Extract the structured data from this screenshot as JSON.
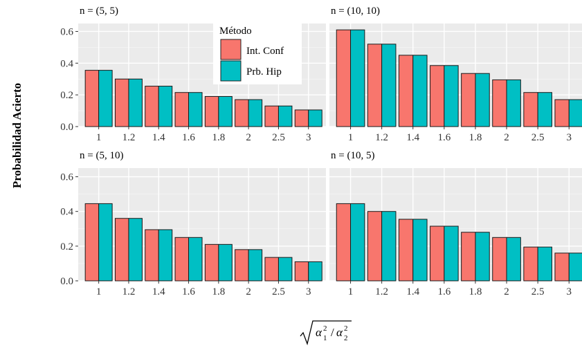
{
  "chart_data": {
    "type": "bar",
    "ylabel": "Probabilidad Acierto",
    "xlabel_latex": "√(α₁² / α₂²)",
    "ylim": [
      0,
      0.65
    ],
    "yticks": [
      0.0,
      0.2,
      0.4,
      0.6
    ],
    "ytick_labels": [
      "0.0",
      "0.2",
      "0.4",
      "0.6"
    ],
    "categories": [
      "1",
      "1.2",
      "1.4",
      "1.6",
      "1.8",
      "2",
      "2.5",
      "3"
    ],
    "legend": {
      "title": "Método",
      "position": "top-center",
      "entries": [
        {
          "name": "Int. Conf",
          "color": "#F8766D"
        },
        {
          "name": "Prb. Hip",
          "color": "#00BFC4"
        }
      ]
    },
    "grid": true,
    "panels": [
      {
        "title": "n = (5, 5)",
        "series": [
          {
            "name": "Int. Conf",
            "values": [
              0.355,
              0.3,
              0.255,
              0.215,
              0.19,
              0.17,
              0.13,
              0.105
            ]
          },
          {
            "name": "Prb. Hip",
            "values": [
              0.355,
              0.3,
              0.255,
              0.215,
              0.19,
              0.17,
              0.13,
              0.105
            ]
          }
        ]
      },
      {
        "title": "n = (10, 10)",
        "series": [
          {
            "name": "Int. Conf",
            "values": [
              0.61,
              0.52,
              0.45,
              0.385,
              0.335,
              0.295,
              0.215,
              0.17
            ]
          },
          {
            "name": "Prb. Hip",
            "values": [
              0.61,
              0.52,
              0.45,
              0.385,
              0.335,
              0.295,
              0.215,
              0.17
            ]
          }
        ]
      },
      {
        "title": "n = (5, 10)",
        "series": [
          {
            "name": "Int. Conf",
            "values": [
              0.445,
              0.36,
              0.295,
              0.25,
              0.21,
              0.18,
              0.135,
              0.11
            ]
          },
          {
            "name": "Prb. Hip",
            "values": [
              0.445,
              0.36,
              0.295,
              0.25,
              0.21,
              0.18,
              0.135,
              0.11
            ]
          }
        ]
      },
      {
        "title": "n = (10, 5)",
        "series": [
          {
            "name": "Int. Conf",
            "values": [
              0.445,
              0.4,
              0.355,
              0.315,
              0.28,
              0.25,
              0.195,
              0.16
            ]
          },
          {
            "name": "Prb. Hip",
            "values": [
              0.445,
              0.4,
              0.355,
              0.315,
              0.28,
              0.25,
              0.195,
              0.16
            ]
          }
        ]
      }
    ]
  }
}
